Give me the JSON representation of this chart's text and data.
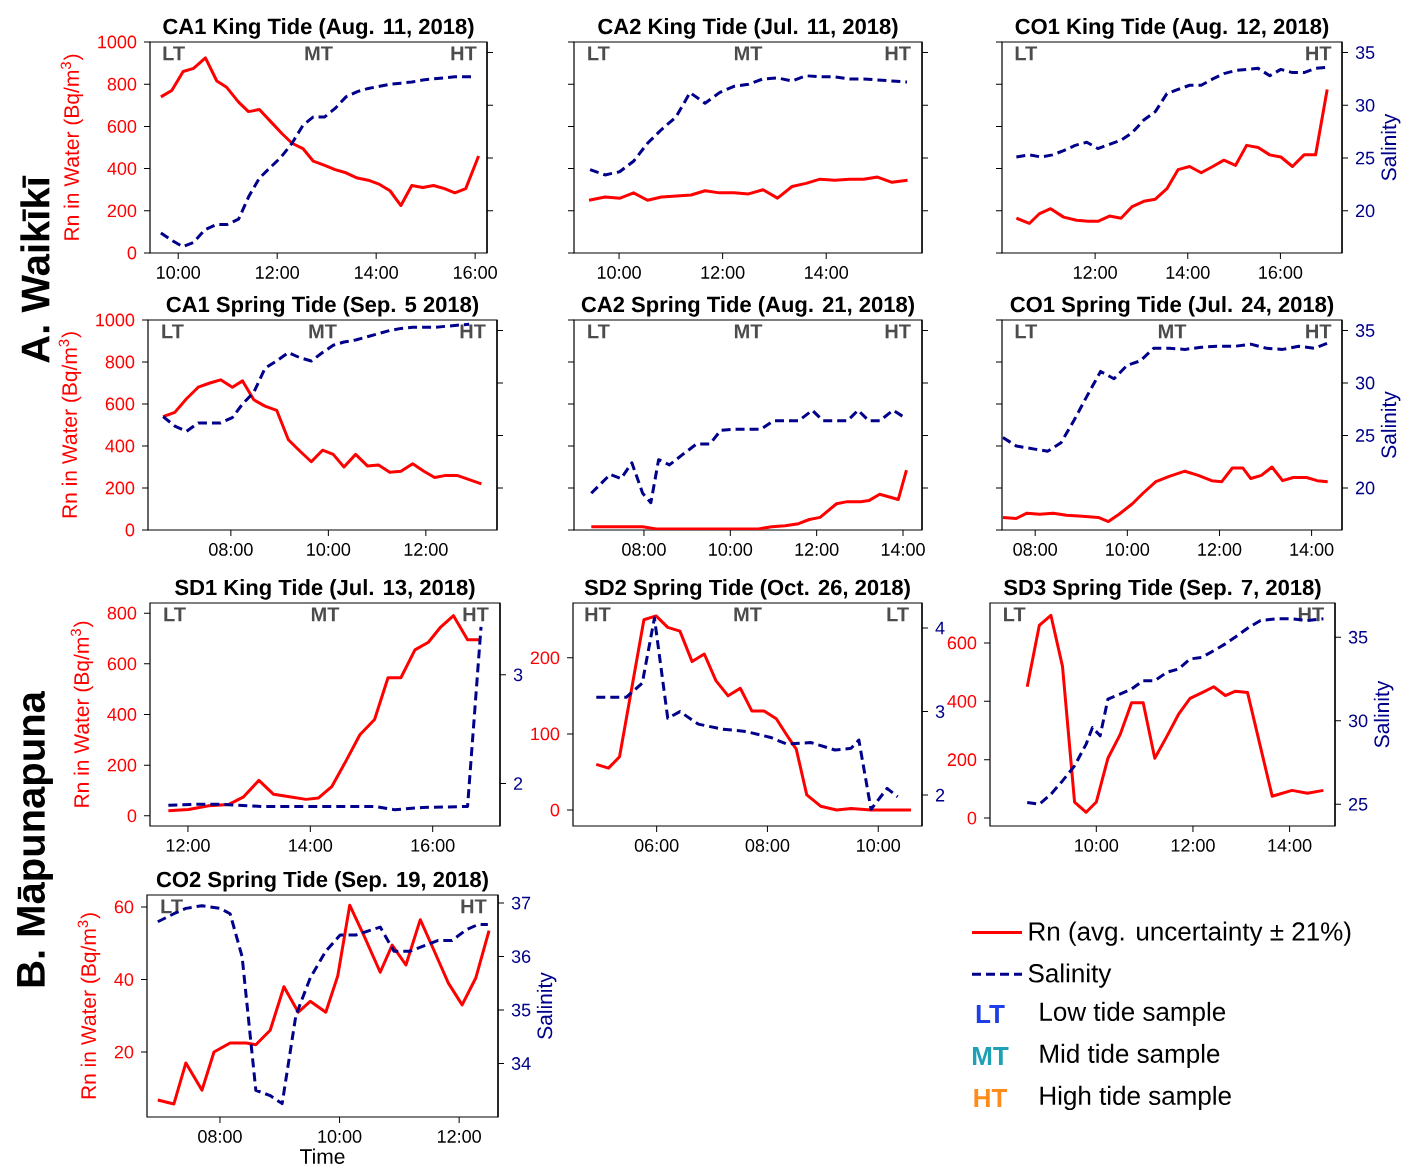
{
  "chart_data": [
    {
      "type": "line",
      "title": "CA1 King Tide (Aug. 11, 2018)",
      "ylabel": "Rn in Water (Bq/m$^{3}$)",
      "tick_labels": [
        "x",
        "y"
      ],
      "xlim": [
        9.43,
        16.24
      ],
      "ylim": [
        0,
        1000
      ],
      "y2lim": [
        16,
        36
      ],
      "xticks": [
        {
          "value": 10,
          "label": "10:00"
        },
        {
          "value": 12,
          "label": "12:00"
        },
        {
          "value": 14,
          "label": "14:00"
        },
        {
          "value": 16,
          "label": "16:00"
        }
      ],
      "yticks": [
        0,
        200,
        400,
        600,
        800,
        1000
      ],
      "annotations": [
        "LT",
        "MT",
        "HT"
      ],
      "series": [
        {
          "color": "#ff0000",
          "x": [
            9.65,
            9.87,
            10.1,
            10.31,
            10.55,
            10.78,
            10.98,
            11.22,
            11.42,
            11.64,
            11.86,
            12.1,
            12.3,
            12.52,
            12.73,
            12.96,
            13.17,
            13.39,
            13.62,
            13.84,
            14.07,
            14.28,
            14.5,
            14.72,
            14.94,
            15.16,
            15.38,
            15.59,
            15.81,
            16.07
          ],
          "values": [
            740,
            770,
            860,
            875,
            925,
            815,
            785,
            715,
            670,
            680,
            625,
            565,
            520,
            495,
            435,
            415,
            395,
            380,
            355,
            345,
            325,
            295,
            225,
            320,
            310,
            320,
            305,
            285,
            305,
            460
          ]
        },
        {
          "color": "#00008b",
          "axis": "y2",
          "line_style": "dashed",
          "x": [
            9.65,
            9.87,
            10.09,
            10.31,
            10.54,
            10.77,
            10.99,
            11.22,
            11.42,
            11.64,
            11.86,
            12.08,
            12.3,
            12.52,
            12.73,
            12.96,
            13.17,
            13.39,
            13.62,
            13.84,
            14.07,
            14.28,
            14.5,
            14.72,
            14.94,
            15.16,
            15.38,
            15.59,
            15.81,
            15.97
          ],
          "values": [
            17.9,
            17.2,
            16.6,
            17.0,
            18.2,
            18.7,
            18.7,
            19.2,
            21.3,
            23.1,
            24.1,
            25.1,
            26.4,
            28.1,
            28.9,
            28.9,
            29.7,
            30.8,
            31.3,
            31.6,
            31.8,
            32.0,
            32.1,
            32.2,
            32.4,
            32.5,
            32.6,
            32.7,
            32.7,
            32.7
          ]
        }
      ]
    },
    {
      "type": "line",
      "title": "CA2 King Tide (Jul. 11, 2018)",
      "tick_labels": [
        "x"
      ],
      "xlim": [
        9.13,
        15.85
      ],
      "ylim": [
        0,
        1000
      ],
      "y2lim": [
        16,
        36
      ],
      "xticks": [
        {
          "value": 10,
          "label": "10:00"
        },
        {
          "value": 12,
          "label": "12:00"
        },
        {
          "value": 14,
          "label": "14:00"
        }
      ],
      "annotations": [
        "LT",
        "MT",
        "HT"
      ],
      "series": [
        {
          "color": "#ff0000",
          "x": [
            9.42,
            9.73,
            10.02,
            10.28,
            10.55,
            10.82,
            11.11,
            11.39,
            11.66,
            11.94,
            12.22,
            12.5,
            12.78,
            13.06,
            13.34,
            13.61,
            13.88,
            14.17,
            14.45,
            14.72,
            14.99,
            15.27,
            15.57
          ],
          "values": [
            250,
            265,
            260,
            285,
            250,
            265,
            270,
            275,
            295,
            285,
            285,
            280,
            300,
            260,
            315,
            330,
            350,
            345,
            350,
            350,
            360,
            335,
            345
          ]
        },
        {
          "color": "#00008b",
          "axis": "y2",
          "line_style": "dashed",
          "x": [
            9.44,
            9.73,
            10.01,
            10.28,
            10.55,
            10.82,
            11.1,
            11.37,
            11.66,
            11.94,
            12.22,
            12.5,
            12.78,
            13.06,
            13.34,
            13.61,
            13.88,
            14.17,
            14.45,
            14.72,
            14.99,
            15.27,
            15.56
          ],
          "values": [
            23.9,
            23.4,
            23.7,
            24.7,
            26.4,
            27.7,
            28.9,
            31.2,
            30.2,
            31.2,
            31.8,
            32.0,
            32.5,
            32.6,
            32.3,
            32.8,
            32.7,
            32.7,
            32.5,
            32.5,
            32.4,
            32.3,
            32.2
          ]
        }
      ]
    },
    {
      "type": "line",
      "title": "CO1 King Tide (Aug. 12, 2018)",
      "y2label": "Salinity",
      "tick_labels": [
        "x",
        "y2"
      ],
      "xlim": [
        9.99,
        17.33
      ],
      "ylim": [
        0,
        1000
      ],
      "y2lim": [
        16,
        36
      ],
      "xticks": [
        {
          "value": 12,
          "label": "12:00"
        },
        {
          "value": 14,
          "label": "14:00"
        },
        {
          "value": 16,
          "label": "16:00"
        }
      ],
      "y2ticks": [
        20,
        25,
        30,
        35
      ],
      "annotations": [
        "LT",
        "HT"
      ],
      "series": [
        {
          "color": "#ff0000",
          "x": [
            10.3,
            10.58,
            10.79,
            11.04,
            11.32,
            11.6,
            11.85,
            12.06,
            12.31,
            12.56,
            12.8,
            13.05,
            13.3,
            13.55,
            13.79,
            14.04,
            14.29,
            14.54,
            14.78,
            15.03,
            15.27,
            15.52,
            15.77,
            16.01,
            16.26,
            16.51,
            16.76,
            17.01
          ],
          "values": [
            165,
            140,
            185,
            210,
            170,
            155,
            150,
            150,
            175,
            165,
            220,
            245,
            255,
            305,
            395,
            410,
            380,
            410,
            440,
            415,
            510,
            500,
            465,
            455,
            410,
            465,
            465,
            775
          ]
        },
        {
          "color": "#00008b",
          "axis": "y2",
          "line_style": "dashed",
          "x": [
            10.3,
            10.58,
            10.83,
            11.08,
            11.32,
            11.57,
            11.82,
            12.06,
            12.31,
            12.56,
            12.8,
            13.05,
            13.3,
            13.55,
            13.79,
            14.04,
            14.29,
            14.54,
            14.78,
            15.03,
            15.27,
            15.52,
            15.77,
            16.01,
            16.26,
            16.51,
            16.76,
            17.01
          ],
          "values": [
            25.1,
            25.3,
            25.1,
            25.3,
            25.7,
            26.2,
            26.5,
            25.9,
            26.3,
            26.7,
            27.4,
            28.6,
            29.4,
            31.1,
            31.5,
            31.9,
            31.9,
            32.5,
            33.0,
            33.3,
            33.4,
            33.5,
            32.8,
            33.4,
            33.1,
            33.1,
            33.5,
            33.6
          ]
        }
      ]
    },
    {
      "type": "line",
      "title": "CA1 Spring Tide (Sep. 5 2018)",
      "ylabel": "Rn in Water (Bq/m$^{3}$)",
      "tick_labels": [
        "x",
        "y"
      ],
      "xlim": [
        6.3,
        13.46
      ],
      "ylim": [
        0,
        1000
      ],
      "y2lim": [
        16,
        36
      ],
      "xticks": [
        {
          "value": 8,
          "label": "08:00"
        },
        {
          "value": 10,
          "label": "10:00"
        },
        {
          "value": 12,
          "label": "12:00"
        }
      ],
      "yticks": [
        0,
        200,
        400,
        600,
        800,
        1000
      ],
      "annotations": [
        "LT",
        "MT",
        "HT"
      ],
      "series": [
        {
          "color": "#ff0000",
          "x": [
            6.61,
            6.85,
            7.09,
            7.33,
            7.57,
            7.79,
            8.03,
            8.24,
            8.47,
            8.7,
            8.94,
            9.18,
            9.42,
            9.65,
            9.88,
            10.1,
            10.32,
            10.56,
            10.8,
            11.03,
            11.26,
            11.49,
            11.73,
            11.96,
            12.18,
            12.41,
            12.64,
            12.89,
            13.14
          ],
          "values": [
            540,
            560,
            625,
            680,
            700,
            715,
            680,
            710,
            620,
            590,
            570,
            430,
            375,
            325,
            380,
            360,
            300,
            360,
            305,
            310,
            275,
            280,
            315,
            280,
            250,
            260,
            260,
            240,
            220
          ]
        },
        {
          "color": "#00008b",
          "axis": "y2",
          "line_style": "dashed",
          "x": [
            6.61,
            6.85,
            7.09,
            7.33,
            7.57,
            7.79,
            8.03,
            8.24,
            8.47,
            8.7,
            8.94,
            9.18,
            9.42,
            9.65,
            9.88,
            10.1,
            10.32,
            10.56,
            10.8,
            11.03,
            11.26,
            11.49,
            11.73,
            11.96,
            12.18,
            12.41,
            12.64,
            12.89
          ],
          "values": [
            26.8,
            25.9,
            25.4,
            26.2,
            26.2,
            26.2,
            26.7,
            28.0,
            29.1,
            31.4,
            32.1,
            32.9,
            32.4,
            32.1,
            32.9,
            33.6,
            33.9,
            34.1,
            34.4,
            34.7,
            35.0,
            35.2,
            35.3,
            35.3,
            35.3,
            35.4,
            35.5,
            35.6
          ]
        }
      ]
    },
    {
      "type": "line",
      "title": "CA2 Spring Tide (Aug. 21, 2018)",
      "tick_labels": [
        "x"
      ],
      "xlim": [
        6.38,
        14.44
      ],
      "ylim": [
        0,
        1000
      ],
      "y2lim": [
        16,
        36
      ],
      "xticks": [
        {
          "value": 8,
          "label": "08:00"
        },
        {
          "value": 10,
          "label": "10:00"
        },
        {
          "value": 12,
          "label": "12:00"
        },
        {
          "value": 14,
          "label": "14:00"
        }
      ],
      "annotations": [
        "LT",
        "MT",
        "HT"
      ],
      "series": [
        {
          "color": "#ff0000",
          "x": [
            6.78,
            7.97,
            8.28,
            8.78,
            9.4,
            10.03,
            10.65,
            10.96,
            11.27,
            11.58,
            11.83,
            12.08,
            12.46,
            12.71,
            13.02,
            13.21,
            13.46,
            13.89,
            14.08
          ],
          "values": [
            15,
            15,
            5,
            5,
            5,
            5,
            5,
            15,
            20,
            30,
            50,
            60,
            125,
            135,
            135,
            140,
            170,
            145,
            285
          ]
        },
        {
          "color": "#00008b",
          "axis": "y2",
          "line_style": "dashed",
          "x": [
            6.78,
            7.22,
            7.47,
            7.72,
            7.97,
            8.16,
            8.34,
            8.59,
            8.9,
            9.22,
            9.53,
            9.78,
            10.09,
            10.46,
            10.71,
            11.0,
            11.27,
            11.58,
            11.9,
            12.15,
            12.46,
            12.71,
            12.96,
            13.21,
            13.46,
            13.77,
            14.08
          ],
          "values": [
            19.5,
            21.3,
            20.9,
            22.4,
            19.5,
            18.6,
            22.7,
            22.2,
            23.2,
            24.2,
            24.2,
            25.5,
            25.6,
            25.6,
            25.6,
            26.4,
            26.4,
            26.4,
            27.4,
            26.4,
            26.4,
            26.4,
            27.4,
            26.4,
            26.4,
            27.4,
            26.6
          ]
        }
      ]
    },
    {
      "type": "line",
      "title": "CO1 Spring Tide (Jul. 24, 2018)",
      "y2label": "Salinity",
      "tick_labels": [
        "x",
        "y2"
      ],
      "xlim": [
        7.28,
        14.66
      ],
      "ylim": [
        0,
        1000
      ],
      "y2lim": [
        16,
        36
      ],
      "xticks": [
        {
          "value": 8,
          "label": "08:00"
        },
        {
          "value": 10,
          "label": "10:00"
        },
        {
          "value": 12,
          "label": "12:00"
        },
        {
          "value": 14,
          "label": "14:00"
        }
      ],
      "y2ticks": [
        20,
        25,
        30,
        35
      ],
      "annotations": [
        "LT",
        "MT",
        "HT"
      ],
      "series": [
        {
          "color": "#ff0000",
          "x": [
            7.3,
            7.59,
            7.82,
            8.1,
            8.39,
            8.68,
            9.02,
            9.37,
            9.59,
            9.82,
            10.11,
            10.34,
            10.62,
            10.91,
            11.25,
            11.54,
            11.83,
            12.05,
            12.28,
            12.51,
            12.68,
            12.91,
            13.14,
            13.37,
            13.6,
            13.89,
            14.12,
            14.35
          ],
          "values": [
            60,
            55,
            80,
            75,
            80,
            70,
            65,
            60,
            40,
            75,
            125,
            175,
            230,
            255,
            280,
            260,
            235,
            230,
            295,
            295,
            245,
            260,
            300,
            235,
            250,
            250,
            235,
            230
          ]
        },
        {
          "color": "#00008b",
          "axis": "y2",
          "line_style": "dashed",
          "x": [
            7.3,
            7.59,
            7.99,
            8.27,
            8.56,
            8.85,
            9.13,
            9.42,
            9.71,
            10.0,
            10.28,
            10.57,
            10.91,
            11.25,
            11.6,
            11.94,
            12.34,
            12.68,
            13.03,
            13.37,
            13.72,
            14.06,
            14.35
          ],
          "values": [
            24.8,
            24.0,
            23.7,
            23.5,
            24.3,
            26.5,
            28.8,
            31.1,
            30.4,
            31.7,
            32.1,
            33.3,
            33.3,
            33.2,
            33.4,
            33.5,
            33.5,
            33.7,
            33.3,
            33.2,
            33.5,
            33.3,
            33.8
          ]
        }
      ]
    },
    {
      "type": "line",
      "title": "SD1 King Tide (Jul. 13, 2018)",
      "ylabel": "Rn in Water (Bq/m$^{3}$)",
      "xlim": [
        11.38,
        17.1
      ],
      "ylim": [
        -40,
        840
      ],
      "y2lim": [
        1.61,
        3.66
      ],
      "xticks": [
        {
          "value": 12,
          "label": "12:00"
        },
        {
          "value": 14,
          "label": "14:00"
        },
        {
          "value": 16,
          "label": "16:00"
        }
      ],
      "yticks": [
        0,
        200,
        400,
        600,
        800
      ],
      "y2ticks": [
        2,
        3
      ],
      "annotations": [
        "LT",
        "MT",
        "HT"
      ],
      "series": [
        {
          "color": "#ff0000",
          "x": [
            11.68,
            12.01,
            12.34,
            12.67,
            12.91,
            13.16,
            13.4,
            13.66,
            13.93,
            14.13,
            14.35,
            14.59,
            14.81,
            15.05,
            15.27,
            15.48,
            15.71,
            15.93,
            16.13,
            16.34,
            16.57,
            16.79
          ],
          "values": [
            20,
            25,
            40,
            45,
            75,
            140,
            85,
            75,
            65,
            70,
            115,
            220,
            320,
            380,
            545,
            545,
            655,
            685,
            745,
            790,
            695,
            695
          ]
        },
        {
          "color": "#00008b",
          "axis": "y2",
          "line_style": "dashed",
          "x": [
            11.68,
            12.15,
            12.54,
            13.2,
            13.86,
            14.52,
            15.05,
            15.38,
            15.84,
            16.57,
            16.79
          ],
          "values": [
            1.8,
            1.81,
            1.81,
            1.79,
            1.79,
            1.79,
            1.79,
            1.76,
            1.78,
            1.79,
            3.44
          ]
        }
      ]
    },
    {
      "type": "line",
      "title": "SD2 Spring Tide (Oct. 26, 2018)",
      "xlim": [
        4.49,
        10.79
      ],
      "ylim": [
        -21,
        272
      ],
      "y2lim": [
        1.63,
        4.3
      ],
      "xticks": [
        {
          "value": 6,
          "label": "06:00"
        },
        {
          "value": 8,
          "label": "08:00"
        },
        {
          "value": 10,
          "label": "10:00"
        }
      ],
      "yticks": [
        0,
        100,
        200
      ],
      "y2ticks": [
        2,
        3,
        4
      ],
      "annotations": [
        "HT",
        "MT",
        "LT"
      ],
      "series": [
        {
          "color": "#ff0000",
          "x": [
            4.91,
            5.13,
            5.33,
            5.77,
            5.99,
            6.2,
            6.42,
            6.64,
            6.86,
            7.07,
            7.29,
            7.51,
            7.72,
            7.94,
            8.16,
            8.38,
            8.52,
            8.71,
            8.96,
            9.25,
            9.51,
            9.87,
            10.38,
            10.59
          ],
          "values": [
            60,
            55,
            70,
            250,
            255,
            240,
            235,
            195,
            205,
            170,
            150,
            160,
            130,
            130,
            120,
            95,
            80,
            20,
            5,
            0,
            2,
            0,
            0,
            0
          ]
        },
        {
          "color": "#00008b",
          "axis": "y2",
          "line_style": "dashed",
          "x": [
            4.91,
            5.45,
            5.74,
            5.96,
            6.2,
            6.42,
            6.75,
            7.19,
            7.62,
            8.06,
            8.35,
            8.78,
            9.22,
            9.51,
            9.65,
            9.87,
            10.16,
            10.35
          ],
          "values": [
            3.17,
            3.17,
            3.34,
            4.12,
            2.92,
            3.0,
            2.85,
            2.79,
            2.76,
            2.69,
            2.61,
            2.63,
            2.54,
            2.56,
            2.66,
            1.83,
            2.08,
            1.98
          ]
        }
      ]
    },
    {
      "type": "line",
      "title": "SD3 Spring Tide (Sep. 7, 2018)",
      "y2label": "Salinity",
      "xlim": [
        7.8,
        14.94
      ],
      "ylim": [
        -27,
        737
      ],
      "y2lim": [
        23.7,
        37.05
      ],
      "xticks": [
        {
          "value": 10,
          "label": "10:00"
        },
        {
          "value": 12,
          "label": "12:00"
        },
        {
          "value": 14,
          "label": "14:00"
        }
      ],
      "yticks": [
        0,
        200,
        400,
        600
      ],
      "y2ticks": [
        25,
        30,
        35
      ],
      "annotations": [
        "LT",
        "HT"
      ],
      "series": [
        {
          "color": "#ff0000",
          "x": [
            8.57,
            8.82,
            9.06,
            9.3,
            9.55,
            9.79,
            10.0,
            10.24,
            10.49,
            10.73,
            10.97,
            11.21,
            11.46,
            11.7,
            11.94,
            12.19,
            12.43,
            12.67,
            12.88,
            13.13,
            13.64,
            14.05,
            14.37,
            14.7
          ],
          "values": [
            450,
            660,
            695,
            520,
            55,
            20,
            55,
            205,
            285,
            395,
            395,
            205,
            280,
            355,
            410,
            430,
            450,
            420,
            435,
            430,
            75,
            95,
            85,
            95
          ]
        },
        {
          "color": "#00008b",
          "axis": "y2",
          "line_style": "dashed",
          "x": [
            8.57,
            8.82,
            9.06,
            9.3,
            9.55,
            9.79,
            9.92,
            10.08,
            10.24,
            10.49,
            10.73,
            10.97,
            11.21,
            11.46,
            11.7,
            11.94,
            12.19,
            12.43,
            12.67,
            12.92,
            13.16,
            13.4,
            13.72,
            14.05,
            14.37,
            14.7
          ],
          "values": [
            25.1,
            25.0,
            25.6,
            26.4,
            27.3,
            28.6,
            29.6,
            29.1,
            31.3,
            31.6,
            31.9,
            32.4,
            32.4,
            32.9,
            33.1,
            33.7,
            33.8,
            34.2,
            34.6,
            35.1,
            35.6,
            36.0,
            36.1,
            36.1,
            36.0,
            36.1
          ]
        }
      ]
    },
    {
      "type": "line",
      "title": "CO2 Spring Tide (Sep. 19, 2018)",
      "xlabel": "Time",
      "ylabel": "Rn in Water (Bq/m$^{3}$)",
      "y2label": "Salinity",
      "legend": "right",
      "xlim": [
        6.78,
        12.65
      ],
      "ylim": [
        2.1,
        63.3
      ],
      "y2lim": [
        33.0,
        37.15
      ],
      "xticks": [
        {
          "value": 8,
          "label": "08:00"
        },
        {
          "value": 10,
          "label": "10:00"
        },
        {
          "value": 12,
          "label": "12:00"
        }
      ],
      "yticks": [
        20,
        40,
        60
      ],
      "y2ticks": [
        34,
        35,
        36,
        37
      ],
      "annotations": [
        "LT",
        "HT"
      ],
      "series": [
        {
          "name": "Rn (avg. uncertainty ± 21%)",
          "color": "#ff0000",
          "x": [
            6.96,
            7.23,
            7.43,
            7.7,
            7.9,
            8.17,
            8.44,
            8.6,
            8.84,
            9.07,
            9.31,
            9.51,
            9.77,
            9.97,
            10.17,
            10.41,
            10.68,
            10.88,
            11.11,
            11.35,
            11.58,
            11.82,
            12.05,
            12.28,
            12.5
          ],
          "values": [
            6.8,
            5.7,
            17,
            9.5,
            20,
            22.5,
            22.5,
            22,
            26,
            38,
            31,
            34,
            31,
            41,
            60.5,
            52,
            42,
            49.5,
            44,
            56.5,
            48,
            39,
            33,
            40.5,
            53.5
          ]
        },
        {
          "name": "Salinity",
          "color": "#00008b",
          "axis": "y2",
          "line_style": "dashed",
          "x": [
            6.96,
            7.23,
            7.43,
            7.7,
            8.0,
            8.17,
            8.37,
            8.6,
            8.84,
            9.04,
            9.27,
            9.51,
            9.77,
            10.01,
            10.27,
            10.54,
            10.68,
            10.91,
            11.18,
            11.41,
            11.65,
            11.88,
            12.12,
            12.32,
            12.48
          ],
          "values": [
            36.65,
            36.8,
            36.9,
            36.95,
            36.9,
            36.8,
            36.0,
            33.5,
            33.4,
            33.25,
            34.9,
            35.6,
            36.1,
            36.4,
            36.4,
            36.5,
            36.55,
            36.1,
            36.1,
            36.2,
            36.3,
            36.3,
            36.5,
            36.6,
            36.6
          ]
        }
      ]
    },
    {
      "type": "other",
      "categories": [
        "LT",
        "MT",
        "HT"
      ],
      "colors": [
        "#1f3fe6",
        "#20a0b4",
        "#ff8c1a"
      ],
      "annotations": [
        "Low tide sample",
        "Mid tide sample",
        "High tide sample"
      ]
    },
    {
      "type": "other",
      "annotations": [
        "A. Waikīkī"
      ]
    },
    {
      "type": "other",
      "annotations": [
        "B. Māpunapuna"
      ]
    }
  ]
}
